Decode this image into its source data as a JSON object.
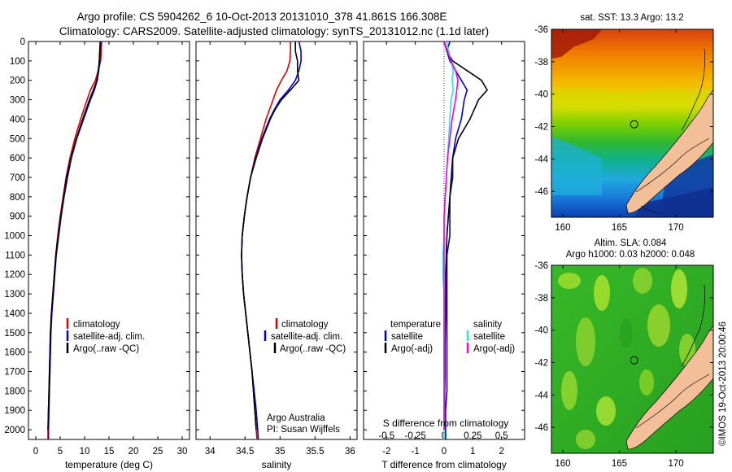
{
  "title": {
    "line1": "Argo profile: CS 5904262_6 10-Oct-2013 20131010_378 41.861S 166.308E",
    "line2": "Climatology: CARS2009. Satellite-adjusted climatology: synTS_20131012.nc (1.1d later)"
  },
  "colors": {
    "climatology": "#e00000",
    "satellite": "#0000cc",
    "argo": "#000000",
    "sat_salinity": "#33dddd",
    "argo_salinity": "#ee00ee"
  },
  "depth_axis": {
    "ticks": [
      0,
      100,
      200,
      300,
      400,
      500,
      600,
      700,
      800,
      900,
      1000,
      1100,
      1200,
      1300,
      1400,
      1500,
      1600,
      1700,
      1800,
      1900,
      2000
    ],
    "range": [
      0,
      2050
    ]
  },
  "temperature_panel": {
    "xlabel": "temperature (deg C)",
    "xticks": [
      0,
      5,
      10,
      15,
      20,
      25,
      30
    ],
    "xlim": [
      -1.5,
      31.5
    ],
    "legend": [
      "climatology",
      "satellite-adj. clim.",
      "Argo(..raw -QC)"
    ]
  },
  "salinity_panel": {
    "xlabel": "salinity",
    "xticks": [
      34,
      34.5,
      35,
      35.5,
      36
    ],
    "xlim": [
      33.8,
      36.1
    ],
    "legend": [
      "climatology",
      "satellite-adj. clim.",
      "Argo(..raw -QC)"
    ],
    "note1": "Argo Australia",
    "note2": "PI: Susan Wijffels"
  },
  "difference_panel": {
    "xlabel": "T difference from climatology",
    "top_label": "S difference from climatology",
    "t_ticks": [
      "-2",
      "-1",
      "0",
      "1",
      "2"
    ],
    "t_tick_values": [
      -2,
      -1,
      0,
      1,
      2
    ],
    "s_ticks": [
      "-0.5",
      "-0.25",
      "0",
      "0.25",
      "0.5"
    ],
    "s_tick_values": [
      -0.5,
      -0.25,
      0,
      0.25,
      0.5
    ],
    "xlim": [
      -2.8,
      2.8
    ],
    "legend": {
      "temp_header": "temperature",
      "temp_sat": "satellite",
      "temp_argo": "Argo(-adj)",
      "sal_header": "salinity",
      "sal_sat": "satellite",
      "sal_argo": "Argo(-adj)"
    }
  },
  "sst_map": {
    "title": "sat. SST: 13.3 Argo: 13.2",
    "yticks": [
      "-36",
      "-38",
      "-40",
      "-42",
      "-44",
      "-46"
    ],
    "ytick_values": [
      -36,
      -38,
      -40,
      -42,
      -44,
      -46
    ],
    "xticks": [
      "160",
      "165",
      "170"
    ],
    "xtick_values": [
      160,
      165,
      170
    ],
    "lon_range": [
      159,
      173.3
    ],
    "lat_range": [
      -36,
      -47.6
    ]
  },
  "sla_map": {
    "title1": "Altim. SLA: 0.084",
    "title2": "Argo h1000: 0.03 h2000: 0.048",
    "yticks": [
      "-36",
      "-38",
      "-40",
      "-42",
      "-44",
      "-46"
    ],
    "ytick_values": [
      -36,
      -38,
      -40,
      -42,
      -44,
      -46
    ],
    "xticks": [
      "160",
      "165",
      "170"
    ],
    "xtick_values": [
      160,
      165,
      170
    ],
    "lon_range": [
      159,
      173.3
    ],
    "lat_range": [
      -36,
      -47.6
    ]
  },
  "side_label": "©IMOS 19-Oct-2013 20:00:46",
  "argo_position": {
    "lon": 166.308,
    "lat": -41.861
  },
  "chart_data": [
    {
      "type": "line",
      "title": "",
      "xlabel": "temperature (deg C)",
      "ylabel": "",
      "xlim": [
        -1.5,
        31.5
      ],
      "ylim": [
        2050,
        0
      ],
      "series": [
        {
          "name": "climatology",
          "depth": [
            0,
            50,
            100,
            150,
            200,
            250,
            300,
            400,
            500,
            600,
            700,
            800,
            900,
            1000,
            1100,
            1200,
            1300,
            1400,
            1500,
            1600,
            1700,
            1800,
            1900,
            2000,
            2050
          ],
          "values": [
            13.5,
            13.4,
            13.3,
            12.8,
            12.2,
            11.2,
            10.5,
            9.2,
            8.0,
            7.0,
            6.2,
            5.6,
            5.0,
            4.5,
            4.1,
            3.8,
            3.5,
            3.2,
            3.0,
            2.9,
            2.8,
            2.7,
            2.6,
            2.5,
            2.5
          ]
        },
        {
          "name": "satellite-adj. clim.",
          "depth": [
            0,
            50,
            100,
            150,
            200,
            250,
            300,
            400,
            500,
            600,
            700,
            800,
            900,
            1000,
            1100,
            1200,
            1300,
            1400,
            1500,
            1600,
            1700,
            1800,
            1900,
            2000,
            2050
          ],
          "values": [
            13.3,
            13.2,
            13.1,
            12.9,
            12.6,
            12.0,
            11.2,
            9.8,
            8.4,
            7.3,
            6.5,
            5.8,
            5.2,
            4.7,
            4.2,
            3.9,
            3.6,
            3.3,
            3.1,
            3.0,
            2.9,
            2.8,
            2.7,
            2.6,
            2.6
          ]
        },
        {
          "name": "Argo(..raw -QC)",
          "depth": [
            0,
            50,
            100,
            150,
            200,
            250,
            300,
            400,
            500,
            600,
            700,
            800,
            900,
            1000,
            1100,
            1200,
            1300,
            1400,
            1500,
            1600,
            1700,
            1800,
            1900,
            2000
          ],
          "values": [
            13.2,
            13.1,
            13.0,
            12.8,
            12.5,
            11.8,
            11.0,
            9.6,
            8.3,
            7.2,
            6.3,
            5.7,
            5.1,
            4.6,
            4.1,
            3.8,
            3.5,
            3.2,
            3.0,
            2.9,
            2.8,
            2.7,
            2.6,
            2.5
          ]
        }
      ]
    },
    {
      "type": "line",
      "title": "",
      "xlabel": "salinity",
      "ylabel": "",
      "xlim": [
        33.8,
        36.1
      ],
      "ylim": [
        2050,
        0
      ],
      "series": [
        {
          "name": "climatology",
          "depth": [
            0,
            50,
            100,
            150,
            200,
            250,
            300,
            350,
            400,
            500,
            600,
            700,
            800,
            900,
            1000,
            1100,
            1200,
            1300,
            1400,
            1500,
            1600,
            1700,
            1800,
            1900,
            2000,
            2050
          ],
          "values": [
            35.15,
            35.15,
            35.14,
            35.1,
            35.02,
            34.95,
            34.9,
            34.85,
            34.8,
            34.72,
            34.64,
            34.58,
            34.53,
            34.49,
            34.46,
            34.45,
            34.46,
            34.48,
            34.51,
            34.54,
            34.57,
            34.6,
            34.62,
            34.64,
            34.66,
            34.67
          ]
        },
        {
          "name": "satellite-adj. clim.",
          "depth": [
            0,
            50,
            100,
            150,
            200,
            250,
            300,
            350,
            400,
            500,
            600,
            700,
            800,
            900,
            1000,
            1100,
            1200,
            1300,
            1400,
            1500,
            1600,
            1700,
            1800,
            1900,
            2000,
            2050
          ],
          "values": [
            35.27,
            35.3,
            35.3,
            35.27,
            35.22,
            35.12,
            35.0,
            34.92,
            34.85,
            34.74,
            34.65,
            34.58,
            34.53,
            34.49,
            34.46,
            34.45,
            34.46,
            34.48,
            34.51,
            34.54,
            34.57,
            34.6,
            34.63,
            34.66,
            34.68,
            34.69
          ]
        },
        {
          "name": "Argo(..raw -QC)",
          "depth": [
            0,
            50,
            100,
            150,
            200,
            250,
            300,
            350,
            400,
            500,
            600,
            700,
            800,
            900,
            1000,
            1100,
            1200,
            1300,
            1400,
            1500,
            1600,
            1700,
            1800,
            1900,
            2000
          ],
          "values": [
            35.22,
            35.22,
            35.25,
            35.25,
            35.27,
            35.15,
            35.02,
            34.93,
            34.86,
            34.75,
            34.66,
            34.58,
            34.53,
            34.49,
            34.46,
            34.45,
            34.46,
            34.48,
            34.51,
            34.54,
            34.57,
            34.6,
            34.62,
            34.64,
            34.66
          ]
        }
      ]
    },
    {
      "type": "line",
      "title": "",
      "xlabel": "T difference from climatology",
      "ylabel": "",
      "xlim": [
        -2.8,
        2.8
      ],
      "ylim": [
        2050,
        0
      ],
      "series": [
        {
          "name": "temperature satellite",
          "depth": [
            0,
            50,
            100,
            150,
            200,
            250,
            300,
            400,
            500,
            600,
            700,
            800,
            900,
            1000,
            1100,
            1200,
            1300,
            1400,
            1500,
            1600,
            1700,
            1800,
            1900,
            2000,
            2050
          ],
          "values": [
            0.2,
            0.1,
            0.2,
            0.4,
            0.6,
            0.8,
            0.7,
            0.6,
            0.4,
            0.3,
            0.3,
            0.2,
            0.2,
            0.2,
            0.1,
            0.1,
            0.1,
            0.1,
            0.1,
            0.1,
            0.1,
            0.1,
            0.05,
            0.05,
            0.05
          ]
        },
        {
          "name": "temperature Argo(-adj)",
          "depth": [
            0,
            50,
            100,
            150,
            200,
            250,
            300,
            400,
            500,
            600,
            700,
            800,
            900,
            1000,
            1100,
            1200,
            1300,
            1400,
            1500,
            1600,
            1700,
            1800,
            1900,
            2000
          ],
          "values": [
            0.0,
            0.1,
            0.3,
            0.8,
            1.3,
            1.5,
            1.2,
            0.9,
            0.5,
            0.3,
            0.25,
            0.2,
            0.15,
            0.1,
            0.08,
            0.05,
            0.05,
            0.05,
            0.04,
            0.03,
            0.03,
            0.02,
            0.02,
            0.02
          ]
        },
        {
          "name": "salinity satellite",
          "depth": [
            0,
            50,
            100,
            150,
            200,
            250,
            300,
            400,
            500,
            600,
            700,
            800,
            900,
            1000,
            1100,
            1200,
            1300,
            1400,
            1500,
            1600,
            1700,
            1800,
            1900,
            2000,
            2050
          ],
          "values": [
            0.02,
            0.04,
            0.06,
            0.08,
            0.07,
            0.08,
            0.06,
            0.05,
            0.04,
            0.03,
            0.02,
            0.01,
            0.0,
            0.0,
            -0.01,
            -0.01,
            0.0,
            0.0,
            0.0,
            0.0,
            0.0,
            0.0,
            0.0,
            0.0,
            0.0
          ]
        },
        {
          "name": "salinity Argo(-adj)",
          "depth": [
            0,
            50,
            100,
            150,
            200,
            250,
            300,
            400,
            500,
            600,
            700,
            800,
            900,
            1000,
            1100,
            1200,
            1300,
            1400,
            1500,
            1600,
            1700,
            1800,
            1900,
            2000
          ],
          "values": [
            0.0,
            0.03,
            0.06,
            0.1,
            0.12,
            0.11,
            0.1,
            0.07,
            0.05,
            0.03,
            0.02,
            0.01,
            0.0,
            0.0,
            0.0,
            0.0,
            0.0,
            0.0,
            0.0,
            0.0,
            0.0,
            0.0,
            0.0,
            0.0
          ]
        }
      ]
    }
  ]
}
